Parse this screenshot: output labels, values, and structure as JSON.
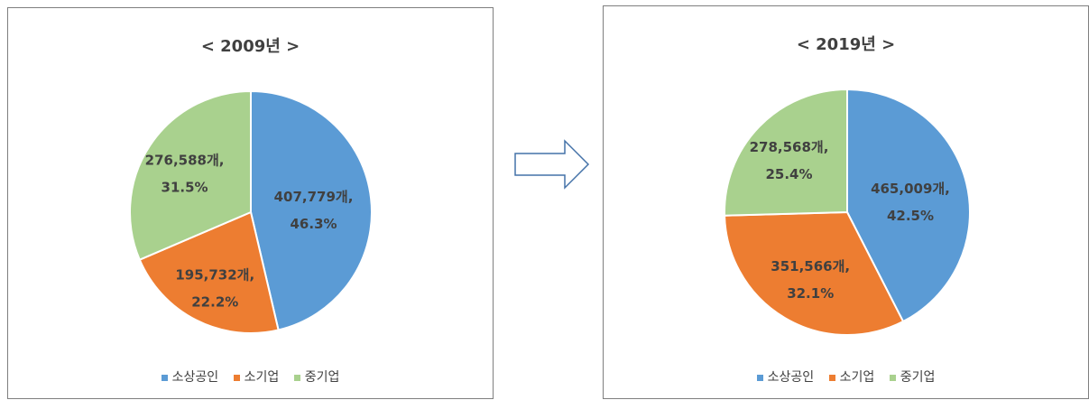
{
  "chart_data": [
    {
      "type": "pie",
      "title": "< 2009년 >",
      "categories": [
        "소상공인",
        "소기업",
        "중기업"
      ],
      "values": [
        407779,
        195732,
        276588
      ],
      "labels": [
        [
          "407,779개,",
          "46.3%"
        ],
        [
          "195,732개,",
          "22.2%"
        ],
        [
          "276,588개,",
          "31.5%"
        ]
      ],
      "colors": [
        "#5b9bd5",
        "#ed7d31",
        "#a9d18e"
      ]
    },
    {
      "type": "pie",
      "title": "< 2019년 >",
      "categories": [
        "소상공인",
        "소기업",
        "중기업"
      ],
      "values": [
        465009,
        351566,
        278568
      ],
      "labels": [
        [
          "465,009개,",
          "42.5%"
        ],
        [
          "351,566개,",
          "32.1%"
        ],
        [
          "278,568개,",
          "25.4%"
        ]
      ],
      "colors": [
        "#5b9bd5",
        "#ed7d31",
        "#a9d18e"
      ]
    }
  ],
  "arrow": {
    "icon": "right-arrow-icon",
    "stroke": "#4472a8",
    "fill": "#ffffff"
  }
}
